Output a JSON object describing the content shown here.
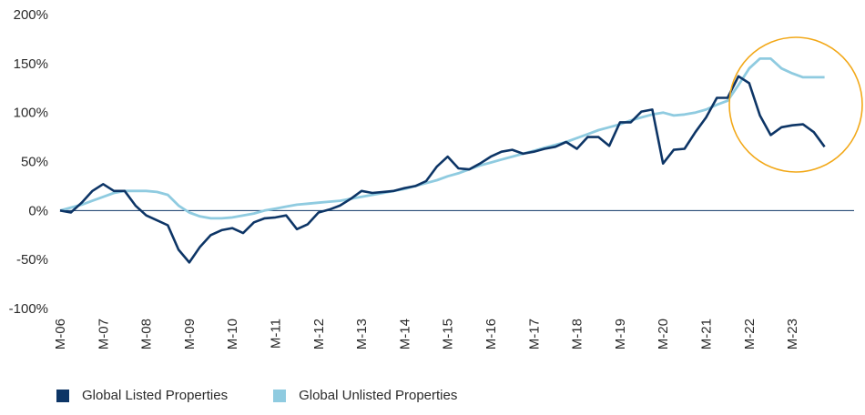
{
  "chart_data": {
    "type": "line",
    "title": "",
    "xlabel": "",
    "ylabel": "",
    "ylim": [
      -100,
      200
    ],
    "y_ticks": [
      -100,
      -50,
      0,
      50,
      100,
      150,
      200
    ],
    "y_tick_labels": [
      "-100%",
      "-50%",
      "0%",
      "50%",
      "100%",
      "150%",
      "200%"
    ],
    "x_start": 2006.0,
    "x_end": 2024.0,
    "x_tick_labels": [
      "M-06",
      "M-07",
      "M-08",
      "M-09",
      "M-10",
      "M-11",
      "M-12",
      "M-13",
      "M-14",
      "M-15",
      "M-16",
      "M-17",
      "M-18",
      "M-19",
      "M-20",
      "M-21",
      "M-22",
      "M-23"
    ],
    "grid": false,
    "legend_position": "bottom-left",
    "series": [
      {
        "name": "Global Listed Properties",
        "color": "#0d3566",
        "x": [
          2006.0,
          2006.25,
          2006.5,
          2006.75,
          2007.0,
          2007.25,
          2007.5,
          2007.75,
          2008.0,
          2008.25,
          2008.5,
          2008.75,
          2009.0,
          2009.25,
          2009.5,
          2009.75,
          2010.0,
          2010.25,
          2010.5,
          2010.75,
          2011.0,
          2011.25,
          2011.5,
          2011.75,
          2012.0,
          2012.25,
          2012.5,
          2012.75,
          2013.0,
          2013.25,
          2013.5,
          2013.75,
          2014.0,
          2014.25,
          2014.5,
          2014.75,
          2015.0,
          2015.25,
          2015.5,
          2015.75,
          2016.0,
          2016.25,
          2016.5,
          2016.75,
          2017.0,
          2017.25,
          2017.5,
          2017.75,
          2018.0,
          2018.25,
          2018.5,
          2018.75,
          2019.0,
          2019.25,
          2019.5,
          2019.75,
          2020.0,
          2020.25,
          2020.5,
          2020.75,
          2021.0,
          2021.25,
          2021.5,
          2021.75,
          2022.0,
          2022.25,
          2022.5,
          2022.75,
          2023.0,
          2023.25,
          2023.5,
          2023.75
        ],
        "values": [
          0,
          -2,
          8,
          20,
          27,
          20,
          20,
          5,
          -5,
          -10,
          -15,
          -40,
          -53,
          -37,
          -25,
          -20,
          -18,
          -23,
          -12,
          -8,
          -7,
          -5,
          -19,
          -14,
          -2,
          1,
          5,
          12,
          20,
          18,
          19,
          20,
          23,
          25,
          30,
          45,
          55,
          43,
          42,
          48,
          55,
          60,
          62,
          58,
          60,
          63,
          65,
          70,
          63,
          75,
          75,
          66,
          90,
          90,
          101,
          103,
          48,
          62,
          63,
          80,
          95,
          115,
          115,
          137,
          130,
          97,
          77,
          85,
          87,
          88,
          80,
          65
        ]
      },
      {
        "name": "Global Unlisted Properties",
        "color": "#8fcbe0",
        "x": [
          2006.0,
          2006.25,
          2006.5,
          2006.75,
          2007.0,
          2007.25,
          2007.5,
          2007.75,
          2008.0,
          2008.25,
          2008.5,
          2008.75,
          2009.0,
          2009.25,
          2009.5,
          2009.75,
          2010.0,
          2010.25,
          2010.5,
          2010.75,
          2011.0,
          2011.25,
          2011.5,
          2011.75,
          2012.0,
          2012.25,
          2012.5,
          2012.75,
          2013.0,
          2013.25,
          2013.5,
          2013.75,
          2014.0,
          2014.25,
          2014.5,
          2014.75,
          2015.0,
          2015.25,
          2015.5,
          2015.75,
          2016.0,
          2016.25,
          2016.5,
          2016.75,
          2017.0,
          2017.25,
          2017.5,
          2017.75,
          2018.0,
          2018.25,
          2018.5,
          2018.75,
          2019.0,
          2019.25,
          2019.5,
          2019.75,
          2020.0,
          2020.25,
          2020.5,
          2020.75,
          2021.0,
          2021.25,
          2021.5,
          2021.75,
          2022.0,
          2022.25,
          2022.5,
          2022.75,
          2023.0,
          2023.25,
          2023.5,
          2023.75
        ],
        "values": [
          0,
          3,
          6,
          10,
          14,
          18,
          20,
          20,
          20,
          19,
          16,
          5,
          -2,
          -6,
          -8,
          -8,
          -7,
          -5,
          -3,
          0,
          2,
          4,
          6,
          7,
          8,
          9,
          10,
          12,
          14,
          16,
          18,
          20,
          22,
          25,
          28,
          31,
          35,
          38,
          42,
          46,
          49,
          52,
          55,
          58,
          61,
          64,
          67,
          70,
          74,
          78,
          82,
          85,
          88,
          92,
          95,
          98,
          100,
          97,
          98,
          100,
          103,
          108,
          112,
          128,
          145,
          155,
          155,
          145,
          140,
          136,
          136,
          136
        ]
      }
    ],
    "annotation": "circle highlighting 2022–2023 divergence"
  }
}
